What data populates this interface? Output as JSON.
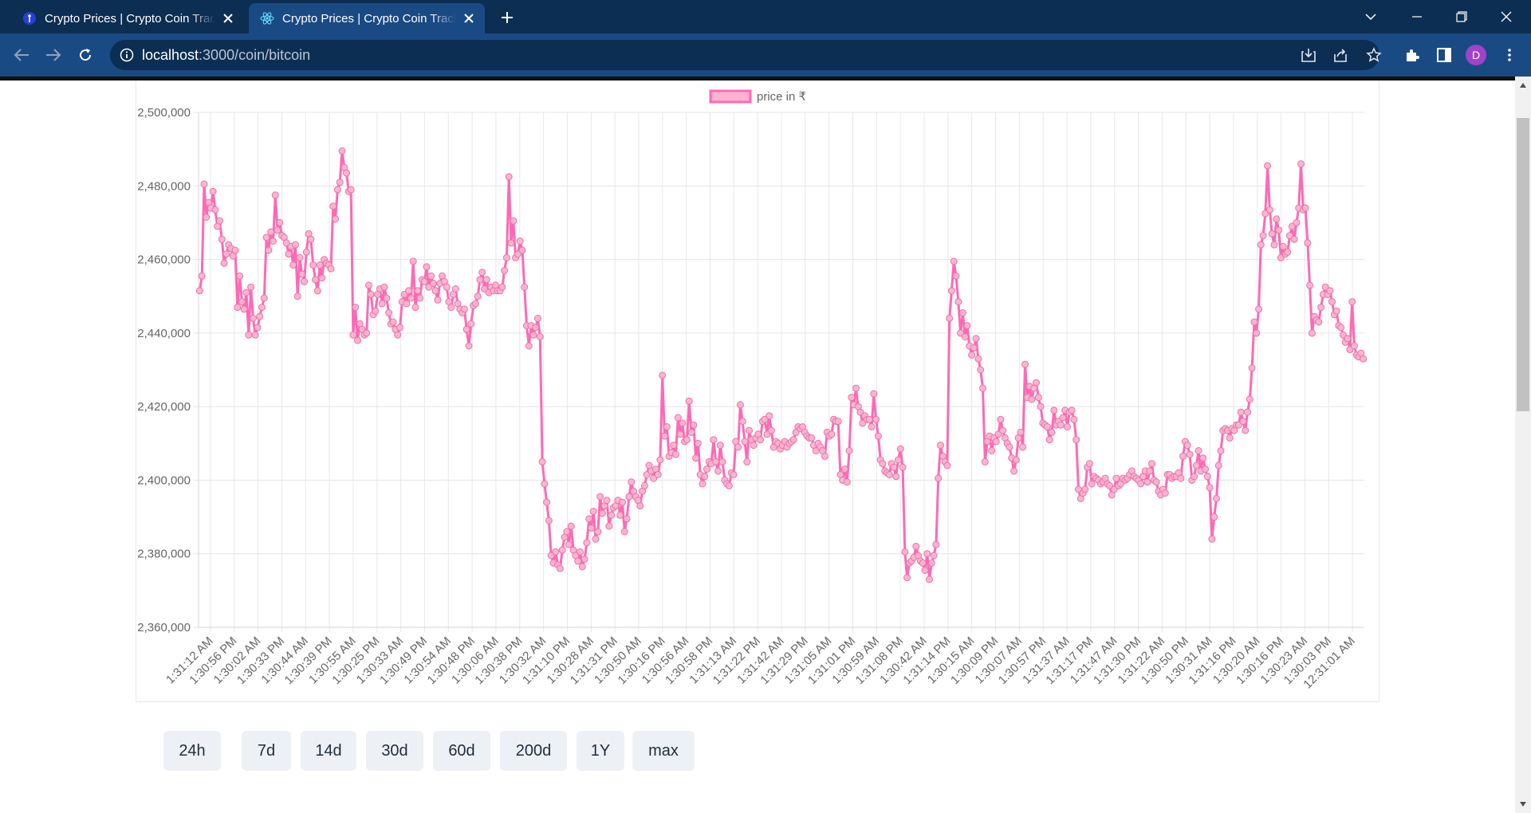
{
  "browser": {
    "tabs": [
      {
        "title": "Crypto Prices | Crypto Coin Tracker",
        "active": false
      },
      {
        "title": "Crypto Prices | Crypto Coin Tracker",
        "active": true
      }
    ],
    "url_host": "localhost",
    "url_path": ":3000/coin/bitcoin",
    "profile_initial": "D",
    "colors": {
      "frame": "#0c2e52",
      "toolbar": "#1a4a84",
      "avatar": "#a142c9"
    }
  },
  "chart_data": {
    "type": "line",
    "series": [
      {
        "name": "price in ₹",
        "color": "#ff69b4",
        "values": [
          2451500,
          2455500,
          2480500,
          2471500,
          2475500,
          2474000,
          2478500,
          2473500,
          2469000,
          2470500,
          2465500,
          2459000,
          2461500,
          2464000,
          2463000,
          2461000,
          2462500,
          2447000,
          2455500,
          2448500,
          2446500,
          2451000,
          2439500,
          2452500,
          2444000,
          2439500,
          2441500,
          2444500,
          2447000,
          2449500,
          2466000,
          2462500,
          2467500,
          2465000,
          2477500,
          2468000,
          2470000,
          2466500,
          2466000,
          2464500,
          2461500,
          2463500,
          2458500,
          2464000,
          2450000,
          2460500,
          2456000,
          2454000,
          2462000,
          2467000,
          2465500,
          2458500,
          2454500,
          2451500,
          2458500,
          2455000,
          2460000,
          2459000,
          2458500,
          2457500,
          2474500,
          2471000,
          2479000,
          2481000,
          2489500,
          2485000,
          2483500,
          2478500,
          2479000,
          2439500,
          2447000,
          2438000,
          2442500,
          2441000,
          2439500,
          2440000,
          2453000,
          2450500,
          2445000,
          2446000,
          2450500,
          2452000,
          2448000,
          2452500,
          2449500,
          2445500,
          2442500,
          2443000,
          2441000,
          2439500,
          2441500,
          2448500,
          2450500,
          2448000,
          2451500,
          2449500,
          2459500,
          2447000,
          2451500,
          2449500,
          2454500,
          2454000,
          2458000,
          2452500,
          2455500,
          2453500,
          2451500,
          2449000,
          2453500,
          2455500,
          2454000,
          2452500,
          2448500,
          2447000,
          2450500,
          2452000,
          2448000,
          2446500,
          2445500,
          2446500,
          2441000,
          2436500,
          2442500,
          2447500,
          2448000,
          2450000,
          2454500,
          2456500,
          2452000,
          2454500,
          2451000,
          2452500,
          2451500,
          2453000,
          2451500,
          2451500,
          2452500,
          2457000,
          2460500,
          2482500,
          2464500,
          2470500,
          2460500,
          2461500,
          2465000,
          2462500,
          2452500,
          2442000,
          2436500,
          2442000,
          2439500,
          2441500,
          2444000,
          2439000,
          2405000,
          2399000,
          2394000,
          2389000,
          2379500,
          2377500,
          2380500,
          2377000,
          2376000,
          2381000,
          2384500,
          2386000,
          2382500,
          2387500,
          2381000,
          2379500,
          2378000,
          2380500,
          2376500,
          2378500,
          2383000,
          2389500,
          2387000,
          2391500,
          2384000,
          2386000,
          2395500,
          2391000,
          2393000,
          2394500,
          2387500,
          2390500,
          2392500,
          2393000,
          2394500,
          2390500,
          2394000,
          2386000,
          2389500,
          2395500,
          2399500,
          2397000,
          2395500,
          2394500,
          2393000,
          2397000,
          2398500,
          2401500,
          2404000,
          2402500,
          2400500,
          2403000,
          2401500,
          2405500,
          2428500,
          2412000,
          2414500,
          2406500,
          2407500,
          2409500,
          2407000,
          2417000,
          2412500,
          2415500,
          2410500,
          2411000,
          2421500,
          2413000,
          2415000,
          2406000,
          2410000,
          2401500,
          2399000,
          2401000,
          2403000,
          2405000,
          2404500,
          2411000,
          2405000,
          2402500,
          2409500,
          2405000,
          2400000,
          2399000,
          2398500,
          2402000,
          2401500,
          2410500,
          2409000,
          2420500,
          2416000,
          2410500,
          2405000,
          2413500,
          2411000,
          2409500,
          2411500,
          2412500,
          2411000,
          2416000,
          2416500,
          2412500,
          2417500,
          2413500,
          2409000,
          2410500,
          2410000,
          2408500,
          2409500,
          2410500,
          2409000,
          2410000,
          2410500,
          2411000,
          2413000,
          2414500,
          2414000,
          2414500,
          2413000,
          2412000,
          2411500,
          2411500,
          2409500,
          2408000,
          2410000,
          2409000,
          2408000,
          2406500,
          2413000,
          2412000,
          2412500,
          2416500,
          2416000,
          2416000,
          2401500,
          2400000,
          2403000,
          2399500,
          2408000,
          2422500,
          2420500,
          2425000,
          2420000,
          2418500,
          2415500,
          2417500,
          2416500,
          2416500,
          2414500,
          2423500,
          2416500,
          2412000,
          2405500,
          2404500,
          2402500,
          2402000,
          2401500,
          2404500,
          2403500,
          2401000,
          2405500,
          2408500,
          2403500,
          2380500,
          2373500,
          2377500,
          2378000,
          2379000,
          2382000,
          2379500,
          2378000,
          2377500,
          2375500,
          2380000,
          2373000,
          2377500,
          2379500,
          2382500,
          2400500,
          2409500,
          2406500,
          2405000,
          2404000,
          2444000,
          2451500,
          2459500,
          2455500,
          2448500,
          2440000,
          2445500,
          2439000,
          2442000,
          2436500,
          2434000,
          2436000,
          2438500,
          2433000,
          2430000,
          2425000,
          2405000,
          2410500,
          2412000,
          2408000,
          2411500,
          2410500,
          2412500,
          2416500,
          2413500,
          2411500,
          2410000,
          2409000,
          2406000,
          2402500,
          2405500,
          2411500,
          2413000,
          2409000,
          2431500,
          2422500,
          2425500,
          2422000,
          2425000,
          2426500,
          2422500,
          2420000,
          2415500,
          2415000,
          2414500,
          2411000,
          2413000,
          2419000,
          2415000,
          2416000,
          2415000,
          2417000,
          2419000,
          2414500,
          2418500,
          2419000,
          2416500,
          2411000,
          2397500,
          2395000,
          2396500,
          2397500,
          2403500,
          2404500,
          2399000,
          2401000,
          2400500,
          2400000,
          2399000,
          2399500,
          2400500,
          2399000,
          2398500,
          2396000,
          2397500,
          2400500,
          2398500,
          2399000,
          2400500,
          2400000,
          2400500,
          2401500,
          2402500,
          2401000,
          2400500,
          2400000,
          2399000,
          2401000,
          2402500,
          2399500,
          2402500,
          2404500,
          2400000,
          2399500,
          2397000,
          2396000,
          2397500,
          2396500,
          2401500,
          2401500,
          2400500,
          2401000,
          2401000,
          2402000,
          2400500,
          2406500,
          2410500,
          2409500,
          2407000,
          2400000,
          2401000,
          2404000,
          2408000,
          2402500,
          2406000,
          2403000,
          2401000,
          2398000,
          2384000,
          2390000,
          2395000,
          2404000,
          2408000,
          2413500,
          2414000,
          2413500,
          2411500,
          2414000,
          2413500,
          2415000,
          2415000,
          2418500,
          2416000,
          2413500,
          2418500,
          2422000,
          2430500,
          2443000,
          2440000,
          2446500,
          2464000,
          2466500,
          2472500,
          2485500,
          2473500,
          2467000,
          2464000,
          2471000,
          2468000,
          2460500,
          2463500,
          2461500,
          2462000,
          2466500,
          2469000,
          2465500,
          2470000,
          2474000,
          2486000,
          2473500,
          2474000,
          2464500,
          2453000,
          2440000,
          2444500,
          2443500,
          2443000,
          2447000,
          2450500,
          2452500,
          2450500,
          2451500,
          2448500,
          2445000,
          2446000,
          2442000,
          2441500,
          2439500,
          2437500,
          2438500,
          2435500,
          2448500,
          2436500,
          2434000,
          2433500,
          2434500,
          2433000
        ]
      }
    ],
    "x_tick_labels": [
      "1:31:12 AM",
      "1:30:56 PM",
      "1:30:02 AM",
      "1:30:33 PM",
      "1:30:44 AM",
      "1:30:39 PM",
      "1:30:55 AM",
      "1:30:25 PM",
      "1:30:33 AM",
      "1:30:49 PM",
      "1:30:54 AM",
      "1:30:48 PM",
      "1:30:06 AM",
      "1:30:38 PM",
      "1:30:32 AM",
      "1:31:10 PM",
      "1:30:28 AM",
      "1:31:31 PM",
      "1:30:50 AM",
      "1:30:16 PM",
      "1:30:56 AM",
      "1:30:58 PM",
      "1:31:13 AM",
      "1:31:22 PM",
      "1:31:42 AM",
      "1:31:29 PM",
      "1:31:05 AM",
      "1:31:01 PM",
      "1:30:59 AM",
      "1:31:08 PM",
      "1:30:42 AM",
      "1:31:14 PM",
      "1:30:15 AM",
      "1:30:09 PM",
      "1:30:07 AM",
      "1:30:57 PM",
      "1:31:37 AM",
      "1:31:17 PM",
      "1:31:47 AM",
      "1:31:30 PM",
      "1:31:22 AM",
      "1:30:50 PM",
      "1:30:31 AM",
      "1:31:16 PM",
      "1:30:20 AM",
      "1:30:16 PM",
      "1:30:23 AM",
      "1:30:03 PM",
      "12:31:01 AM"
    ],
    "y_tick_labels": [
      "2,500,000",
      "2,480,000",
      "2,460,000",
      "2,440,000",
      "2,420,000",
      "2,400,000",
      "2,380,000",
      "2,360,000"
    ],
    "ylim": [
      2360000,
      2500000
    ],
    "legend": "top-center",
    "grid": true
  },
  "range_buttons": [
    "24h",
    "7d",
    "14d",
    "30d",
    "60d",
    "200d",
    "1Y",
    "max"
  ]
}
